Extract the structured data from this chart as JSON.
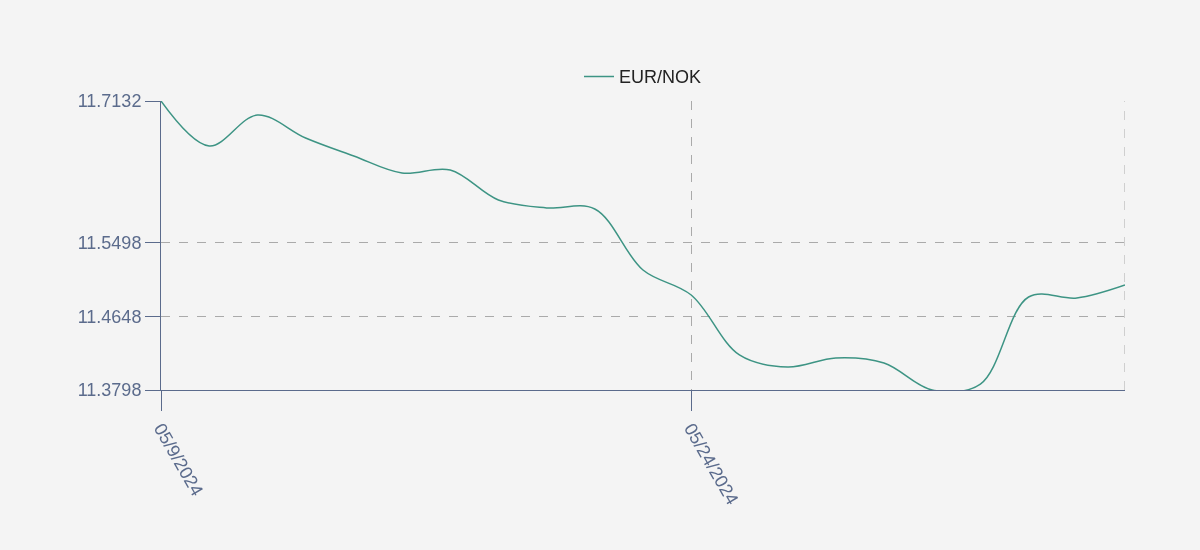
{
  "chart_data": {
    "type": "line",
    "categories": [
      "05/9/2024",
      null,
      null,
      null,
      null,
      null,
      null,
      null,
      null,
      null,
      null,
      "05/24/2024",
      null,
      null,
      null,
      null,
      null,
      null,
      null,
      null,
      null
    ],
    "series": [
      {
        "name": "EUR/NOK",
        "color": "#3d9484",
        "values": [
          11.7132,
          11.6613,
          11.697,
          11.6705,
          11.6497,
          11.6301,
          11.6336,
          11.599,
          11.5898,
          11.5886,
          11.5182,
          11.4894,
          11.4202,
          11.4063,
          11.4167,
          11.4109,
          11.3798,
          11.3867,
          11.4871,
          11.4859,
          11.5009
        ]
      }
    ],
    "ylim": [
      11.3798,
      11.7132
    ],
    "yticks": [
      11.3798,
      11.4648,
      11.5498,
      11.7132
    ],
    "grid": true,
    "legend": "top"
  }
}
